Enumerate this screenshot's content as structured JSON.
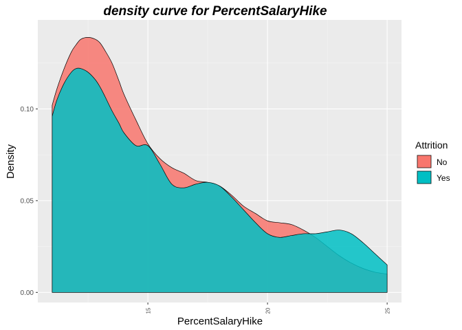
{
  "chart_data": {
    "type": "area",
    "title": "density curve for PercentSalaryHike",
    "xlabel": "PercentSalaryHike",
    "ylabel": "Density",
    "xlim": [
      10.4,
      25.6
    ],
    "ylim": [
      -0.0055,
      0.1485
    ],
    "x_ticks": [
      "15",
      "20",
      "25"
    ],
    "y_ticks": [
      "0.00",
      "0.05",
      "0.10"
    ],
    "grid": true,
    "legend": {
      "title": "Attrition",
      "position": "right"
    },
    "series": [
      {
        "name": "No",
        "color": "#F8766D",
        "x": [
          11,
          11.2,
          11.5,
          11.8,
          12,
          12.2,
          12.5,
          12.8,
          13,
          13.2,
          13.5,
          13.8,
          14,
          14.5,
          15,
          15.5,
          16,
          16.5,
          17,
          17.5,
          18,
          18.5,
          19,
          19.5,
          20,
          20.5,
          21,
          21.5,
          22,
          22.5,
          23,
          23.5,
          24,
          24.5,
          25
        ],
        "values": [
          0.102,
          0.111,
          0.122,
          0.131,
          0.135,
          0.138,
          0.139,
          0.138,
          0.136,
          0.132,
          0.125,
          0.115,
          0.108,
          0.094,
          0.081,
          0.073,
          0.068,
          0.065,
          0.061,
          0.06,
          0.058,
          0.053,
          0.047,
          0.043,
          0.039,
          0.038,
          0.037,
          0.034,
          0.03,
          0.025,
          0.02,
          0.016,
          0.013,
          0.011,
          0.01
        ]
      },
      {
        "name": "Yes",
        "color": "#00BFC4",
        "x": [
          11,
          11.2,
          11.5,
          11.8,
          12,
          12.2,
          12.5,
          12.8,
          13,
          13.2,
          13.5,
          13.8,
          14,
          14.5,
          15,
          15.5,
          16,
          16.5,
          17,
          17.5,
          18,
          18.5,
          19,
          19.5,
          20,
          20.5,
          21,
          21.5,
          22,
          22.5,
          23,
          23.5,
          24,
          24.5,
          25
        ],
        "values": [
          0.096,
          0.105,
          0.114,
          0.12,
          0.122,
          0.122,
          0.12,
          0.116,
          0.112,
          0.107,
          0.099,
          0.092,
          0.087,
          0.08,
          0.08,
          0.07,
          0.059,
          0.057,
          0.059,
          0.06,
          0.058,
          0.052,
          0.045,
          0.038,
          0.032,
          0.03,
          0.031,
          0.032,
          0.032,
          0.033,
          0.034,
          0.032,
          0.027,
          0.021,
          0.015
        ]
      }
    ]
  }
}
